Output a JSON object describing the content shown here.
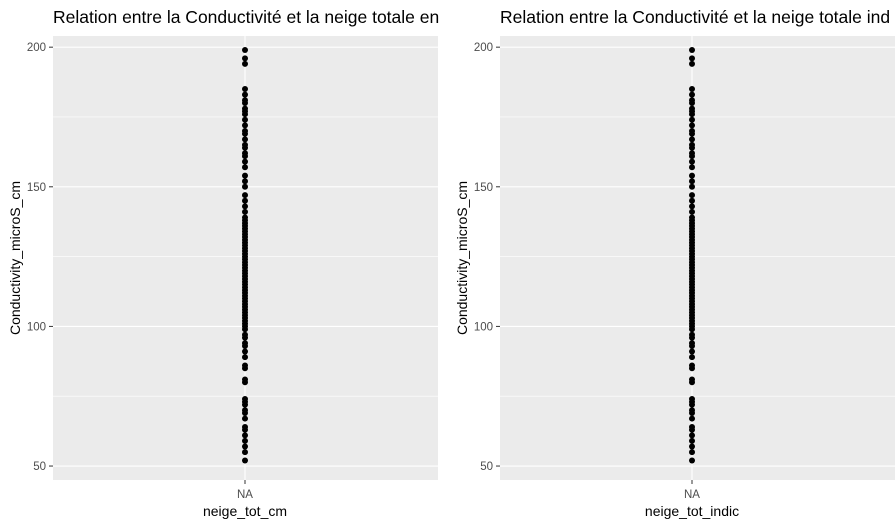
{
  "chart_data": [
    {
      "type": "scatter",
      "title": "Relation entre la Conductivité et la neige totale en",
      "xlabel": "neige_tot_cm",
      "ylabel": "Conductivity_microS_cm",
      "x_categories": [
        "NA"
      ],
      "y_ticks": [
        50,
        100,
        150,
        200
      ],
      "ylim": [
        45,
        204
      ],
      "grid": true,
      "background": "#ebebeb",
      "point_color": "#000000",
      "points": [
        {
          "x": "NA",
          "y": 52
        },
        {
          "x": "NA",
          "y": 55
        },
        {
          "x": "NA",
          "y": 57
        },
        {
          "x": "NA",
          "y": 59
        },
        {
          "x": "NA",
          "y": 61
        },
        {
          "x": "NA",
          "y": 63
        },
        {
          "x": "NA",
          "y": 64
        },
        {
          "x": "NA",
          "y": 67
        },
        {
          "x": "NA",
          "y": 69
        },
        {
          "x": "NA",
          "y": 70
        },
        {
          "x": "NA",
          "y": 72
        },
        {
          "x": "NA",
          "y": 73
        },
        {
          "x": "NA",
          "y": 74
        },
        {
          "x": "NA",
          "y": 80
        },
        {
          "x": "NA",
          "y": 81
        },
        {
          "x": "NA",
          "y": 85
        },
        {
          "x": "NA",
          "y": 86
        },
        {
          "x": "NA",
          "y": 89
        },
        {
          "x": "NA",
          "y": 91
        },
        {
          "x": "NA",
          "y": 93
        },
        {
          "x": "NA",
          "y": 94
        },
        {
          "x": "NA",
          "y": 96
        },
        {
          "x": "NA",
          "y": 97
        },
        {
          "x": "NA",
          "y": 99
        },
        {
          "x": "NA",
          "y": 100
        },
        {
          "x": "NA",
          "y": 101
        },
        {
          "x": "NA",
          "y": 102
        },
        {
          "x": "NA",
          "y": 103
        },
        {
          "x": "NA",
          "y": 104
        },
        {
          "x": "NA",
          "y": 105
        },
        {
          "x": "NA",
          "y": 106
        },
        {
          "x": "NA",
          "y": 107
        },
        {
          "x": "NA",
          "y": 108
        },
        {
          "x": "NA",
          "y": 109
        },
        {
          "x": "NA",
          "y": 110
        },
        {
          "x": "NA",
          "y": 111
        },
        {
          "x": "NA",
          "y": 112
        },
        {
          "x": "NA",
          "y": 113
        },
        {
          "x": "NA",
          "y": 114
        },
        {
          "x": "NA",
          "y": 115
        },
        {
          "x": "NA",
          "y": 116
        },
        {
          "x": "NA",
          "y": 117
        },
        {
          "x": "NA",
          "y": 118
        },
        {
          "x": "NA",
          "y": 119
        },
        {
          "x": "NA",
          "y": 120
        },
        {
          "x": "NA",
          "y": 121
        },
        {
          "x": "NA",
          "y": 122
        },
        {
          "x": "NA",
          "y": 123
        },
        {
          "x": "NA",
          "y": 124
        },
        {
          "x": "NA",
          "y": 125
        },
        {
          "x": "NA",
          "y": 126
        },
        {
          "x": "NA",
          "y": 127
        },
        {
          "x": "NA",
          "y": 128
        },
        {
          "x": "NA",
          "y": 129
        },
        {
          "x": "NA",
          "y": 130
        },
        {
          "x": "NA",
          "y": 131
        },
        {
          "x": "NA",
          "y": 132
        },
        {
          "x": "NA",
          "y": 133
        },
        {
          "x": "NA",
          "y": 134
        },
        {
          "x": "NA",
          "y": 135
        },
        {
          "x": "NA",
          "y": 136
        },
        {
          "x": "NA",
          "y": 137
        },
        {
          "x": "NA",
          "y": 138
        },
        {
          "x": "NA",
          "y": 139
        },
        {
          "x": "NA",
          "y": 141
        },
        {
          "x": "NA",
          "y": 143
        },
        {
          "x": "NA",
          "y": 145
        },
        {
          "x": "NA",
          "y": 147
        },
        {
          "x": "NA",
          "y": 150
        },
        {
          "x": "NA",
          "y": 152
        },
        {
          "x": "NA",
          "y": 154
        },
        {
          "x": "NA",
          "y": 157
        },
        {
          "x": "NA",
          "y": 159
        },
        {
          "x": "NA",
          "y": 161
        },
        {
          "x": "NA",
          "y": 162
        },
        {
          "x": "NA",
          "y": 164
        },
        {
          "x": "NA",
          "y": 165
        },
        {
          "x": "NA",
          "y": 167
        },
        {
          "x": "NA",
          "y": 169
        },
        {
          "x": "NA",
          "y": 170
        },
        {
          "x": "NA",
          "y": 172
        },
        {
          "x": "NA",
          "y": 174
        },
        {
          "x": "NA",
          "y": 176
        },
        {
          "x": "NA",
          "y": 177
        },
        {
          "x": "NA",
          "y": 178
        },
        {
          "x": "NA",
          "y": 180
        },
        {
          "x": "NA",
          "y": 181
        },
        {
          "x": "NA",
          "y": 183
        },
        {
          "x": "NA",
          "y": 185
        },
        {
          "x": "NA",
          "y": 194
        },
        {
          "x": "NA",
          "y": 196
        },
        {
          "x": "NA",
          "y": 199
        }
      ]
    },
    {
      "type": "scatter",
      "title": "Relation entre la Conductivité et la neige totale ind",
      "xlabel": "neige_tot_indic",
      "ylabel": "Conductivity_microS_cm",
      "x_categories": [
        "NA"
      ],
      "y_ticks": [
        50,
        100,
        150,
        200
      ],
      "ylim": [
        45,
        204
      ],
      "grid": true,
      "background": "#ebebeb",
      "point_color": "#000000",
      "points": [
        {
          "x": "NA",
          "y": 52
        },
        {
          "x": "NA",
          "y": 55
        },
        {
          "x": "NA",
          "y": 57
        },
        {
          "x": "NA",
          "y": 59
        },
        {
          "x": "NA",
          "y": 61
        },
        {
          "x": "NA",
          "y": 63
        },
        {
          "x": "NA",
          "y": 64
        },
        {
          "x": "NA",
          "y": 67
        },
        {
          "x": "NA",
          "y": 69
        },
        {
          "x": "NA",
          "y": 70
        },
        {
          "x": "NA",
          "y": 72
        },
        {
          "x": "NA",
          "y": 73
        },
        {
          "x": "NA",
          "y": 74
        },
        {
          "x": "NA",
          "y": 80
        },
        {
          "x": "NA",
          "y": 81
        },
        {
          "x": "NA",
          "y": 85
        },
        {
          "x": "NA",
          "y": 86
        },
        {
          "x": "NA",
          "y": 89
        },
        {
          "x": "NA",
          "y": 91
        },
        {
          "x": "NA",
          "y": 93
        },
        {
          "x": "NA",
          "y": 94
        },
        {
          "x": "NA",
          "y": 96
        },
        {
          "x": "NA",
          "y": 97
        },
        {
          "x": "NA",
          "y": 99
        },
        {
          "x": "NA",
          "y": 100
        },
        {
          "x": "NA",
          "y": 101
        },
        {
          "x": "NA",
          "y": 102
        },
        {
          "x": "NA",
          "y": 103
        },
        {
          "x": "NA",
          "y": 104
        },
        {
          "x": "NA",
          "y": 105
        },
        {
          "x": "NA",
          "y": 106
        },
        {
          "x": "NA",
          "y": 107
        },
        {
          "x": "NA",
          "y": 108
        },
        {
          "x": "NA",
          "y": 109
        },
        {
          "x": "NA",
          "y": 110
        },
        {
          "x": "NA",
          "y": 111
        },
        {
          "x": "NA",
          "y": 112
        },
        {
          "x": "NA",
          "y": 113
        },
        {
          "x": "NA",
          "y": 114
        },
        {
          "x": "NA",
          "y": 115
        },
        {
          "x": "NA",
          "y": 116
        },
        {
          "x": "NA",
          "y": 117
        },
        {
          "x": "NA",
          "y": 118
        },
        {
          "x": "NA",
          "y": 119
        },
        {
          "x": "NA",
          "y": 120
        },
        {
          "x": "NA",
          "y": 121
        },
        {
          "x": "NA",
          "y": 122
        },
        {
          "x": "NA",
          "y": 123
        },
        {
          "x": "NA",
          "y": 124
        },
        {
          "x": "NA",
          "y": 125
        },
        {
          "x": "NA",
          "y": 126
        },
        {
          "x": "NA",
          "y": 127
        },
        {
          "x": "NA",
          "y": 128
        },
        {
          "x": "NA",
          "y": 129
        },
        {
          "x": "NA",
          "y": 130
        },
        {
          "x": "NA",
          "y": 131
        },
        {
          "x": "NA",
          "y": 132
        },
        {
          "x": "NA",
          "y": 133
        },
        {
          "x": "NA",
          "y": 134
        },
        {
          "x": "NA",
          "y": 135
        },
        {
          "x": "NA",
          "y": 136
        },
        {
          "x": "NA",
          "y": 137
        },
        {
          "x": "NA",
          "y": 138
        },
        {
          "x": "NA",
          "y": 139
        },
        {
          "x": "NA",
          "y": 141
        },
        {
          "x": "NA",
          "y": 143
        },
        {
          "x": "NA",
          "y": 145
        },
        {
          "x": "NA",
          "y": 147
        },
        {
          "x": "NA",
          "y": 150
        },
        {
          "x": "NA",
          "y": 152
        },
        {
          "x": "NA",
          "y": 154
        },
        {
          "x": "NA",
          "y": 157
        },
        {
          "x": "NA",
          "y": 159
        },
        {
          "x": "NA",
          "y": 161
        },
        {
          "x": "NA",
          "y": 162
        },
        {
          "x": "NA",
          "y": 164
        },
        {
          "x": "NA",
          "y": 165
        },
        {
          "x": "NA",
          "y": 167
        },
        {
          "x": "NA",
          "y": 169
        },
        {
          "x": "NA",
          "y": 170
        },
        {
          "x": "NA",
          "y": 172
        },
        {
          "x": "NA",
          "y": 174
        },
        {
          "x": "NA",
          "y": 176
        },
        {
          "x": "NA",
          "y": 177
        },
        {
          "x": "NA",
          "y": 178
        },
        {
          "x": "NA",
          "y": 180
        },
        {
          "x": "NA",
          "y": 181
        },
        {
          "x": "NA",
          "y": 183
        },
        {
          "x": "NA",
          "y": 185
        },
        {
          "x": "NA",
          "y": 194
        },
        {
          "x": "NA",
          "y": 196
        },
        {
          "x": "NA",
          "y": 199
        }
      ]
    }
  ]
}
